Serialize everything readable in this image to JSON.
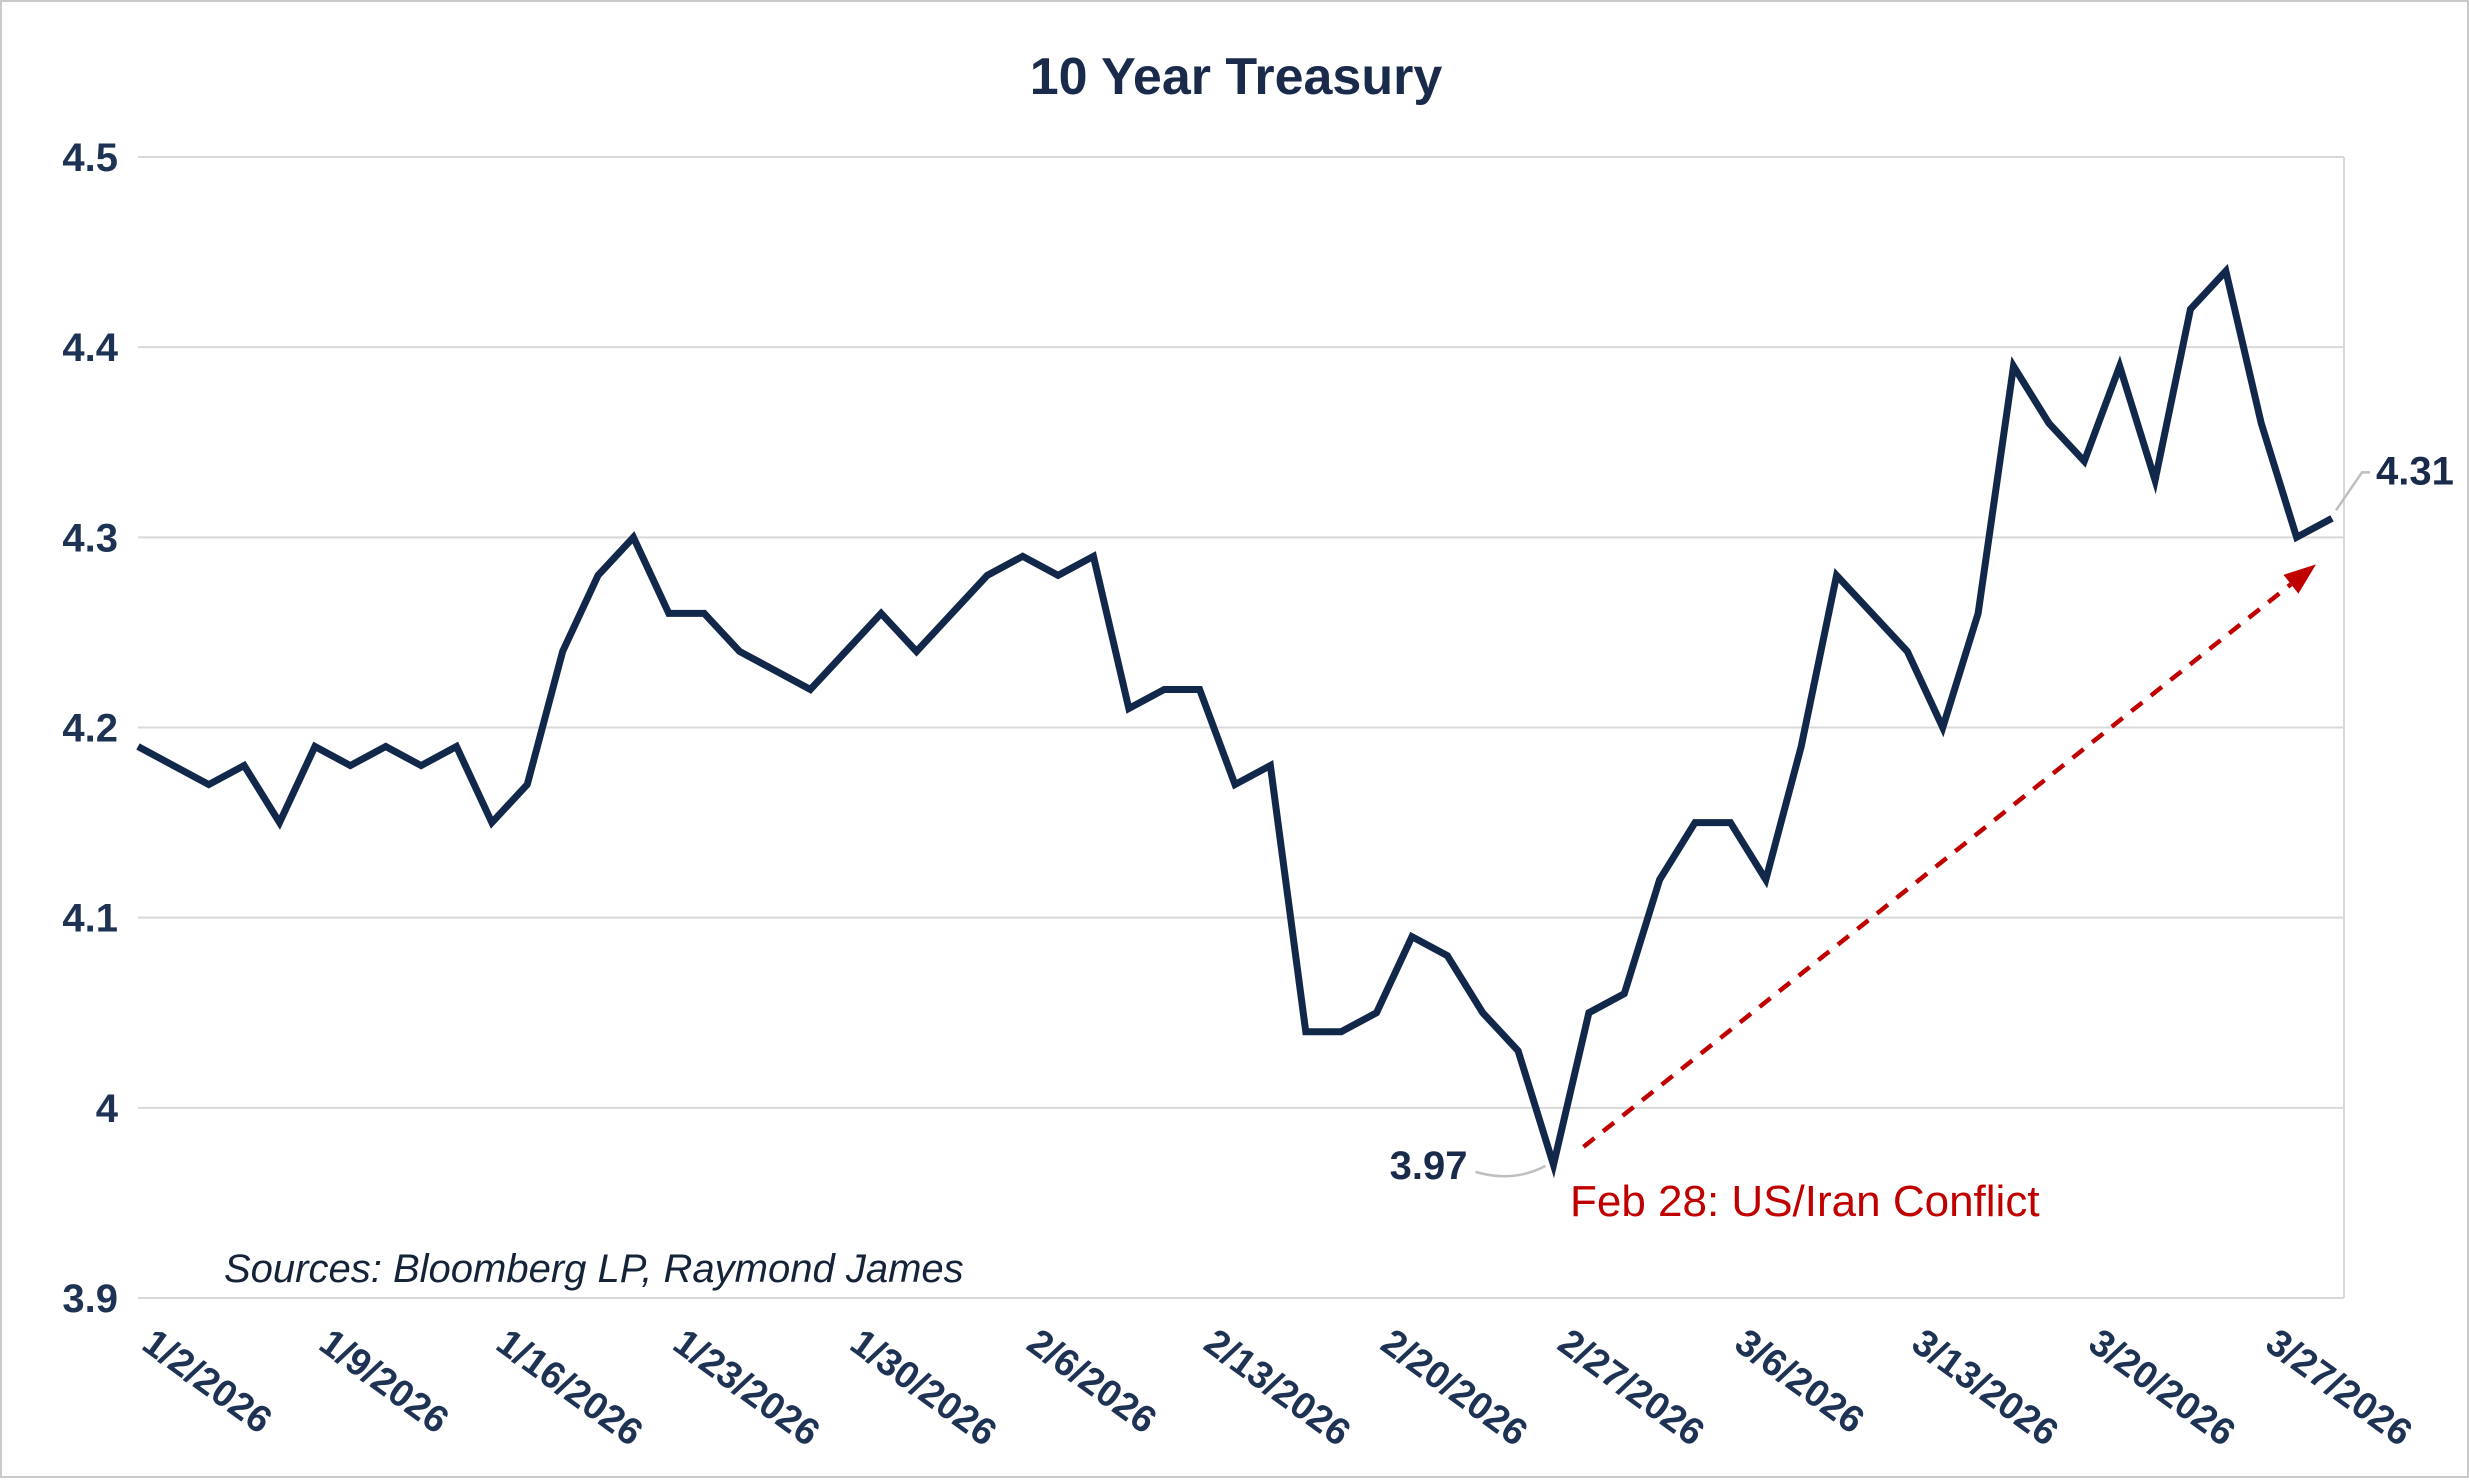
{
  "chart": {
    "title": "10 Year Treasury",
    "source": "Sources: Bloomberg LP, Raymond James"
  },
  "chart_data": {
    "type": "line",
    "title": "10 Year Treasury",
    "series_name": "10 Year Treasury Yield",
    "x": [
      "1/2/2026",
      "1/5/2026",
      "1/6/2026",
      "1/7/2026",
      "1/8/2026",
      "1/9/2026",
      "1/12/2026",
      "1/13/2026",
      "1/14/2026",
      "1/15/2026",
      "1/16/2026",
      "1/19/2026",
      "1/20/2026",
      "1/21/2026",
      "1/22/2026",
      "1/23/2026",
      "1/26/2026",
      "1/27/2026",
      "1/28/2026",
      "1/29/2026",
      "1/30/2026",
      "2/2/2026",
      "2/3/2026",
      "2/4/2026",
      "2/5/2026",
      "2/6/2026",
      "2/9/2026",
      "2/10/2026",
      "2/11/2026",
      "2/12/2026",
      "2/13/2026",
      "2/16/2026",
      "2/17/2026",
      "2/18/2026",
      "2/19/2026",
      "2/20/2026",
      "2/23/2026",
      "2/24/2026",
      "2/25/2026",
      "2/26/2026",
      "2/27/2026",
      "3/2/2026",
      "3/3/2026",
      "3/4/2026",
      "3/5/2026",
      "3/6/2026",
      "3/9/2026",
      "3/10/2026",
      "3/11/2026",
      "3/12/2026",
      "3/13/2026",
      "3/16/2026",
      "3/17/2026",
      "3/18/2026",
      "3/19/2026",
      "3/20/2026",
      "3/23/2026",
      "3/24/2026",
      "3/25/2026",
      "3/26/2026",
      "3/27/2026",
      "3/30/2026",
      "3/31/2026"
    ],
    "values": [
      4.19,
      4.18,
      4.17,
      4.18,
      4.15,
      4.19,
      4.18,
      4.19,
      4.18,
      4.19,
      4.15,
      4.17,
      4.24,
      4.28,
      4.3,
      4.26,
      4.26,
      4.24,
      4.23,
      4.22,
      4.24,
      4.26,
      4.24,
      4.26,
      4.28,
      4.29,
      4.28,
      4.29,
      4.21,
      4.22,
      4.22,
      4.17,
      4.18,
      4.04,
      4.04,
      4.05,
      4.09,
      4.08,
      4.05,
      4.03,
      3.97,
      4.05,
      4.06,
      4.12,
      4.15,
      4.15,
      4.12,
      4.19,
      4.28,
      4.26,
      4.24,
      4.2,
      4.26,
      4.39,
      4.36,
      4.34,
      4.39,
      4.33,
      4.42,
      4.44,
      4.36,
      4.3,
      4.31
    ],
    "ylim": [
      3.9,
      4.5
    ],
    "yticks": [
      4.5,
      4.4,
      4.3,
      4.2,
      4.1,
      4.0,
      3.9
    ],
    "ytick_labels": [
      "4.5",
      "4.4",
      "4.3",
      "4.2",
      "4.1",
      "4",
      "3.9"
    ],
    "xtick_indices": [
      0,
      5,
      10,
      15,
      20,
      25,
      30,
      35,
      40,
      45,
      50,
      55,
      60
    ],
    "xtick_labels": [
      "1/2/2026",
      "1/9/2026",
      "1/16/2026",
      "1/23/2026",
      "1/30/2026",
      "2/6/2026",
      "2/13/2026",
      "2/20/2026",
      "2/27/2026",
      "3/6/2026",
      "3/13/2026",
      "3/20/2026",
      "3/27/2026"
    ],
    "grid": "horizontal",
    "legend": "none",
    "line_color": "#12284B",
    "grid_color": "#D9D9D9",
    "text_color": "#1E3354",
    "annotations": {
      "low": {
        "label": "3.97",
        "x": "2/27/2026",
        "value": 3.97
      },
      "last": {
        "label": "4.31",
        "x": "3/31/2026",
        "value": 4.31
      },
      "event": {
        "label": "Feb 28: US/Iran Conflict",
        "color": "#C00000"
      }
    }
  }
}
